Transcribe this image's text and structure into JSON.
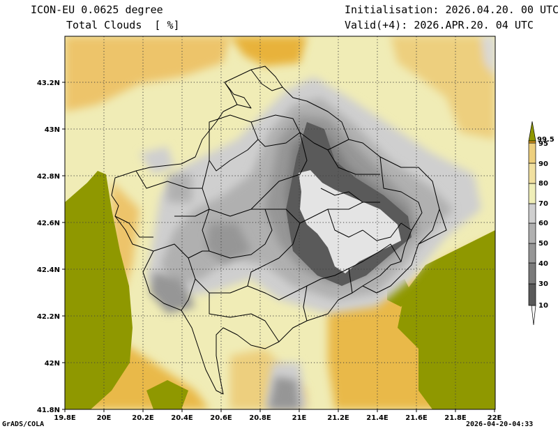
{
  "header": {
    "model_line": "ICON-EU 0.0625 degree",
    "variable_line": "Total Clouds  [ %]",
    "init_line": "Initialisation: 2026.04.20. 00 UTC",
    "valid_line": "Valid(+4): 2026.APR.20. 04 UTC"
  },
  "footer": {
    "credit": "GrADS/COLA",
    "timestamp": "2026-04-20-04:33"
  },
  "map": {
    "lon_range": [
      19.8,
      22.0
    ],
    "lat_range": [
      41.8,
      43.4
    ],
    "lon_ticks": [
      "19.8E",
      "20E",
      "20.2E",
      "20.4E",
      "20.6E",
      "20.8E",
      "21E",
      "21.2E",
      "21.4E",
      "21.6E",
      "21.8E",
      "22E"
    ],
    "lat_ticks": [
      "41.8N",
      "42N",
      "42.2N",
      "42.4N",
      "42.6N",
      "42.8N",
      "43N",
      "43.2N"
    ],
    "grid": "dotted"
  },
  "colorbar": {
    "labels": [
      "10",
      "30",
      "40",
      "50",
      "60",
      "70",
      "80",
      "90",
      "95",
      "99.5"
    ],
    "colors": [
      "#f7f7f7",
      "#5a5a5a",
      "#7a7a7a",
      "#969696",
      "#b0b0b0",
      "#cfcfcf",
      "#efeeb8",
      "#f1e0a0",
      "#edcf7e",
      "#e9b948",
      "#e6a21e",
      "#8f9800"
    ]
  }
}
